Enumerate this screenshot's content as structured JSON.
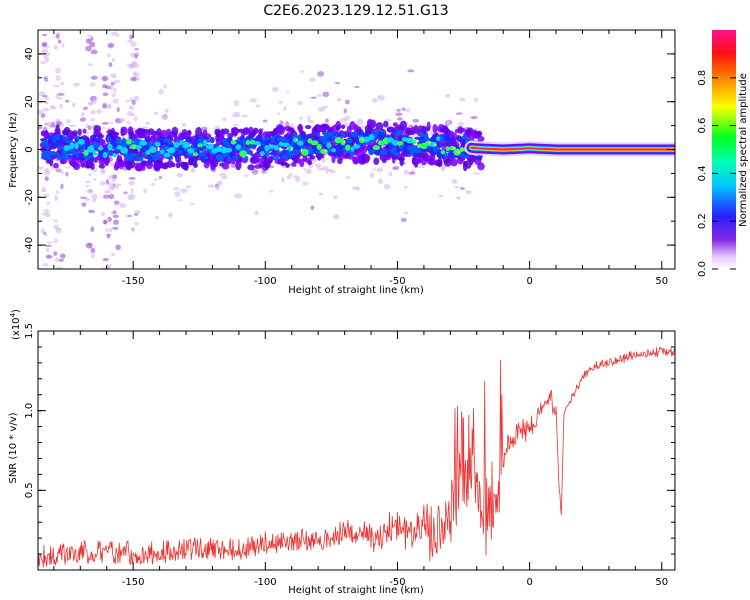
{
  "figure": {
    "title": "C2E6.2023.129.12.51.G13"
  },
  "chart_data": [
    {
      "type": "heatmap",
      "xlabel": "Height of straight line (km)",
      "ylabel": "Frequency (Hz)",
      "xlim": [
        -186,
        55
      ],
      "ylim": [
        -50,
        50
      ],
      "x_ticks": [
        -150,
        -100,
        -50,
        0,
        50
      ],
      "y_ticks": [
        -40,
        -20,
        0,
        20,
        40
      ],
      "colorbar": {
        "label": "Normalized spectral amplitude",
        "range": [
          0,
          1
        ],
        "ticks": [
          0.0,
          0.2,
          0.4,
          0.6,
          0.8
        ],
        "colormap": "rainbow (white-purple-blue-cyan-green-yellow-red-magenta)"
      },
      "ridge": [
        {
          "x": -180,
          "y": 1.0
        },
        {
          "x": -160,
          "y": 0.5
        },
        {
          "x": -140,
          "y": 0.0
        },
        {
          "x": -120,
          "y": 0.0
        },
        {
          "x": -100,
          "y": 0.5
        },
        {
          "x": -80,
          "y": 2.0
        },
        {
          "x": -60,
          "y": 3.0
        },
        {
          "x": -40,
          "y": 2.0
        },
        {
          "x": -25,
          "y": 1.0
        },
        {
          "x": -20,
          "y": 0.5
        },
        {
          "x": -10,
          "y": 0.0
        },
        {
          "x": 0,
          "y": 0.5
        },
        {
          "x": 10,
          "y": 0.0
        },
        {
          "x": 55,
          "y": 0.0
        }
      ]
    },
    {
      "type": "line",
      "xlabel": "Height of straight line (km)",
      "ylabel": "SNR (10 * v/v)",
      "y_multiplier": "(x10",
      "y_multiplier_exp": "4",
      "y_multiplier_close": ")",
      "xlim": [
        -186,
        55
      ],
      "ylim": [
        0,
        1.5
      ],
      "x_ticks": [
        -150,
        -100,
        -50,
        0,
        50
      ],
      "y_ticks": [
        0.5,
        1.0,
        1.5
      ],
      "y_tick_labels": [
        "0.5",
        "1.0",
        "1.5"
      ],
      "series": [
        {
          "color": "#ee3333",
          "x": [
            -186,
            -170,
            -160,
            -150,
            -140,
            -130,
            -120,
            -110,
            -100,
            -90,
            -80,
            -70,
            -60,
            -50,
            -45,
            -40,
            -35,
            -30,
            -25,
            -22,
            -20,
            -18,
            -15,
            -12,
            -10,
            -8,
            -5,
            -2,
            0,
            5,
            8,
            10,
            11,
            12,
            13,
            15,
            18,
            20,
            25,
            30,
            35,
            40,
            45,
            50,
            55
          ],
          "y": [
            0.03,
            0.06,
            0.06,
            0.05,
            0.06,
            0.08,
            0.09,
            0.08,
            0.11,
            0.14,
            0.14,
            0.18,
            0.2,
            0.27,
            0.22,
            0.28,
            0.3,
            0.37,
            0.55,
            0.55,
            0.45,
            0.4,
            0.38,
            0.5,
            0.65,
            0.8,
            0.85,
            0.88,
            0.9,
            1.0,
            1.1,
            1.0,
            0.55,
            0.35,
            1.0,
            1.05,
            1.15,
            1.22,
            1.28,
            1.3,
            1.33,
            1.35,
            1.36,
            1.37,
            1.37
          ]
        }
      ]
    }
  ]
}
